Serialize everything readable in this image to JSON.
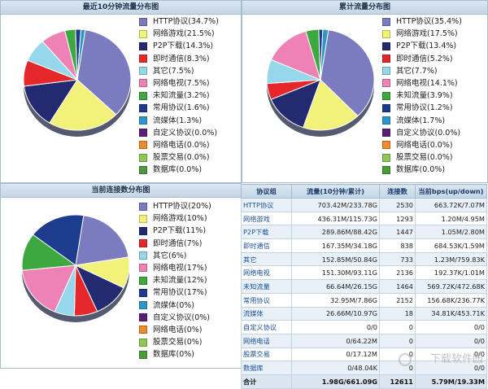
{
  "panels": {
    "recent": {
      "title": "最近10分钟流量分布图",
      "legend": [
        {
          "label": "HTTP协议(34.7%)",
          "color": "#7b7cbf"
        },
        {
          "label": "网络游戏(21.5%)",
          "color": "#f2f27a"
        },
        {
          "label": "P2P下载(14.3%)",
          "color": "#232a70"
        },
        {
          "label": "即时通信(8.3%)",
          "color": "#e4272a"
        },
        {
          "label": "其它(7.5%)",
          "color": "#96d7ec"
        },
        {
          "label": "网络电视(7.5%)",
          "color": "#ee82b6"
        },
        {
          "label": "未知流量(3.2%)",
          "color": "#3da83f"
        },
        {
          "label": "常用协议(1.6%)",
          "color": "#1d3c8e"
        },
        {
          "label": "流媒体(1.3%)",
          "color": "#2f96c9"
        },
        {
          "label": "自定义协议(0.0%)",
          "color": "#5b1f7a"
        },
        {
          "label": "网络电话(0.0%)",
          "color": "#ee8a2c"
        },
        {
          "label": "股票交易(0.0%)",
          "color": "#8fc757"
        },
        {
          "label": "数据库(0.0%)",
          "color": "#4a9b3c"
        }
      ],
      "values": [
        34.7,
        21.5,
        14.3,
        8.3,
        7.5,
        7.5,
        3.2,
        1.6,
        1.3,
        0,
        0,
        0,
        0
      ]
    },
    "cumulative": {
      "title": "累计流量分布图",
      "legend": [
        {
          "label": "HTTP协议(35.4%)",
          "color": "#7b7cbf"
        },
        {
          "label": "网络游戏(17.5%)",
          "color": "#f2f27a"
        },
        {
          "label": "P2P下载(13.4%)",
          "color": "#232a70"
        },
        {
          "label": "即时通信(5.2%)",
          "color": "#e4272a"
        },
        {
          "label": "其它(7.7%)",
          "color": "#96d7ec"
        },
        {
          "label": "网络电视(14.1%)",
          "color": "#ee82b6"
        },
        {
          "label": "未知流量(3.9%)",
          "color": "#3da83f"
        },
        {
          "label": "常用协议(1.2%)",
          "color": "#1d3c8e"
        },
        {
          "label": "流媒体(1.7%)",
          "color": "#2f96c9"
        },
        {
          "label": "自定义协议(0.0%)",
          "color": "#5b1f7a"
        },
        {
          "label": "网络电话(0.0%)",
          "color": "#ee8a2c"
        },
        {
          "label": "股票交易(0.0%)",
          "color": "#8fc757"
        },
        {
          "label": "数据库(0.0%)",
          "color": "#4a9b3c"
        }
      ],
      "values": [
        35.4,
        17.5,
        13.4,
        5.2,
        7.7,
        14.1,
        3.9,
        1.2,
        1.7,
        0,
        0,
        0,
        0
      ]
    },
    "connections": {
      "title": "当前连接数分布图",
      "legend": [
        {
          "label": "HTTP协议(20%)",
          "color": "#7b7cbf"
        },
        {
          "label": "网络游戏(10%)",
          "color": "#f2f27a"
        },
        {
          "label": "P2P下载(11%)",
          "color": "#232a70"
        },
        {
          "label": "即时通信(7%)",
          "color": "#e4272a"
        },
        {
          "label": "其它(6%)",
          "color": "#96d7ec"
        },
        {
          "label": "网络电视(17%)",
          "color": "#ee82b6"
        },
        {
          "label": "未知流量(12%)",
          "color": "#3da83f"
        },
        {
          "label": "常用协议(17%)",
          "color": "#1d3c8e"
        },
        {
          "label": "流媒体(0%)",
          "color": "#2f96c9"
        },
        {
          "label": "自定义协议(0%)",
          "color": "#5b1f7a"
        },
        {
          "label": "网络电话(0%)",
          "color": "#ee8a2c"
        },
        {
          "label": "股票交易(0%)",
          "color": "#8fc757"
        },
        {
          "label": "数据库(0%)",
          "color": "#4a9b3c"
        }
      ],
      "values": [
        20,
        10,
        11,
        7,
        6,
        17,
        12,
        17,
        0,
        0,
        0,
        0,
        0
      ]
    }
  },
  "table": {
    "headers": [
      "协议组",
      "流量(10分钟/累计)",
      "连接数",
      "当前bps(up/down)"
    ],
    "rows": [
      [
        "HTTP协议",
        "703.42M/233.78G",
        "2530",
        "663.72K/7.07M"
      ],
      [
        "网络游戏",
        "436.31M/115.73G",
        "1293",
        "1.20M/4.95M"
      ],
      [
        "P2P下载",
        "289.86M/88.42G",
        "1447",
        "1.05M/2.80M"
      ],
      [
        "即时通信",
        "167.35M/34.18G",
        "838",
        "684.53K/1.59M"
      ],
      [
        "其它",
        "152.85M/50.84G",
        "733",
        "1.23M/759.83K"
      ],
      [
        "网络电视",
        "151.30M/93.11G",
        "2136",
        "192.37K/1.01M"
      ],
      [
        "未知流量",
        "66.64M/26.15G",
        "1464",
        "569.72K/472.68K"
      ],
      [
        "常用协议",
        "32.95M/7.86G",
        "2152",
        "156.68K/236.77K"
      ],
      [
        "流媒体",
        "26.66M/10.97G",
        "18",
        "34.81K/453.71K"
      ],
      [
        "自定义协议",
        "0/0",
        "0",
        "0/0"
      ],
      [
        "网络电话",
        "0/64.22M",
        "0",
        "0/0"
      ],
      [
        "股票交易",
        "0/17.12M",
        "0",
        "0/0"
      ],
      [
        "数据库",
        "0/48.04K",
        "0",
        "0/0"
      ]
    ],
    "total": [
      "合计",
      "1.98G/661.09G",
      "12611",
      "5.79M/19.33M"
    ]
  },
  "watermark": "下载软件园"
}
